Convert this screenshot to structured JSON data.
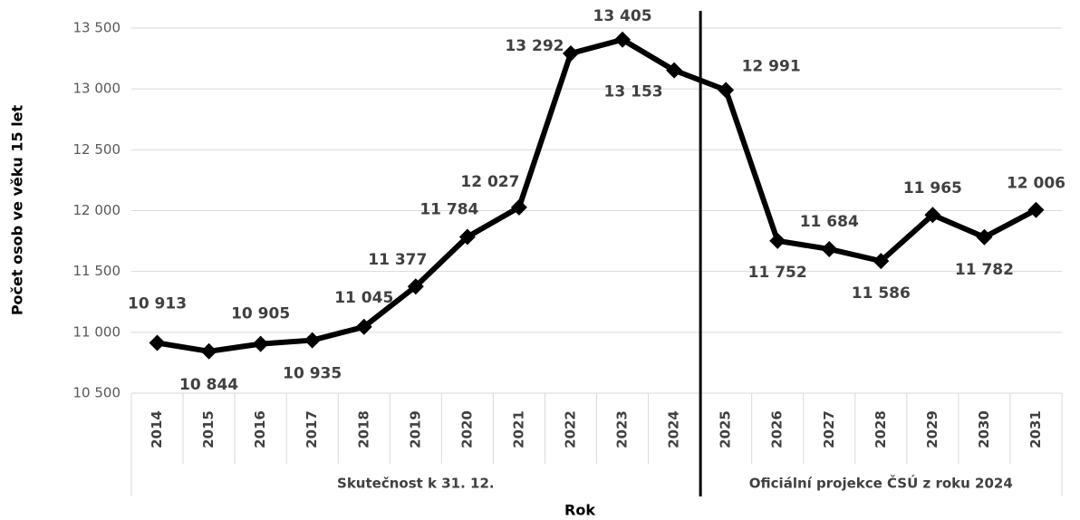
{
  "chart_data": {
    "type": "line",
    "x_label": "Rok",
    "y_label": "Počet osob ve věku 15 let",
    "categories": [
      "2014",
      "2015",
      "2016",
      "2017",
      "2018",
      "2019",
      "2020",
      "2021",
      "2022",
      "2023",
      "2024",
      "2025",
      "2026",
      "2027",
      "2028",
      "2029",
      "2030",
      "2031"
    ],
    "group_labels": [
      "Skutečnost k 31. 12.",
      "Oficiální  projekce ČSÚ  z roku 2024"
    ],
    "series": [
      {
        "color": "#000000",
        "values": [
          10913,
          10844,
          10905,
          10935,
          11045,
          11377,
          11784,
          12027,
          13292,
          13405,
          13153,
          12991,
          11752,
          11684,
          11586,
          11965,
          11782,
          12006
        ],
        "value_labels": [
          "10 913",
          "10 844",
          "10 905",
          "10 935",
          "11 045",
          "11 377",
          "11 784",
          "12 027",
          "13 292",
          "13 405",
          "13 153",
          "12 991",
          "11 752",
          "11 684",
          "11 586",
          "11 965",
          "11 782",
          "12 006"
        ]
      }
    ],
    "ylim": [
      10500,
      13500
    ],
    "yticks": [
      {
        "value": 10500,
        "label": "10 500"
      },
      {
        "value": 11000,
        "label": "11 000"
      },
      {
        "value": 11500,
        "label": "11 500"
      },
      {
        "value": 12000,
        "label": "12 000"
      },
      {
        "value": 12500,
        "label": "12 500"
      },
      {
        "value": 13000,
        "label": "13 000"
      },
      {
        "value": 13500,
        "label": "13 500"
      }
    ],
    "grid": true
  }
}
